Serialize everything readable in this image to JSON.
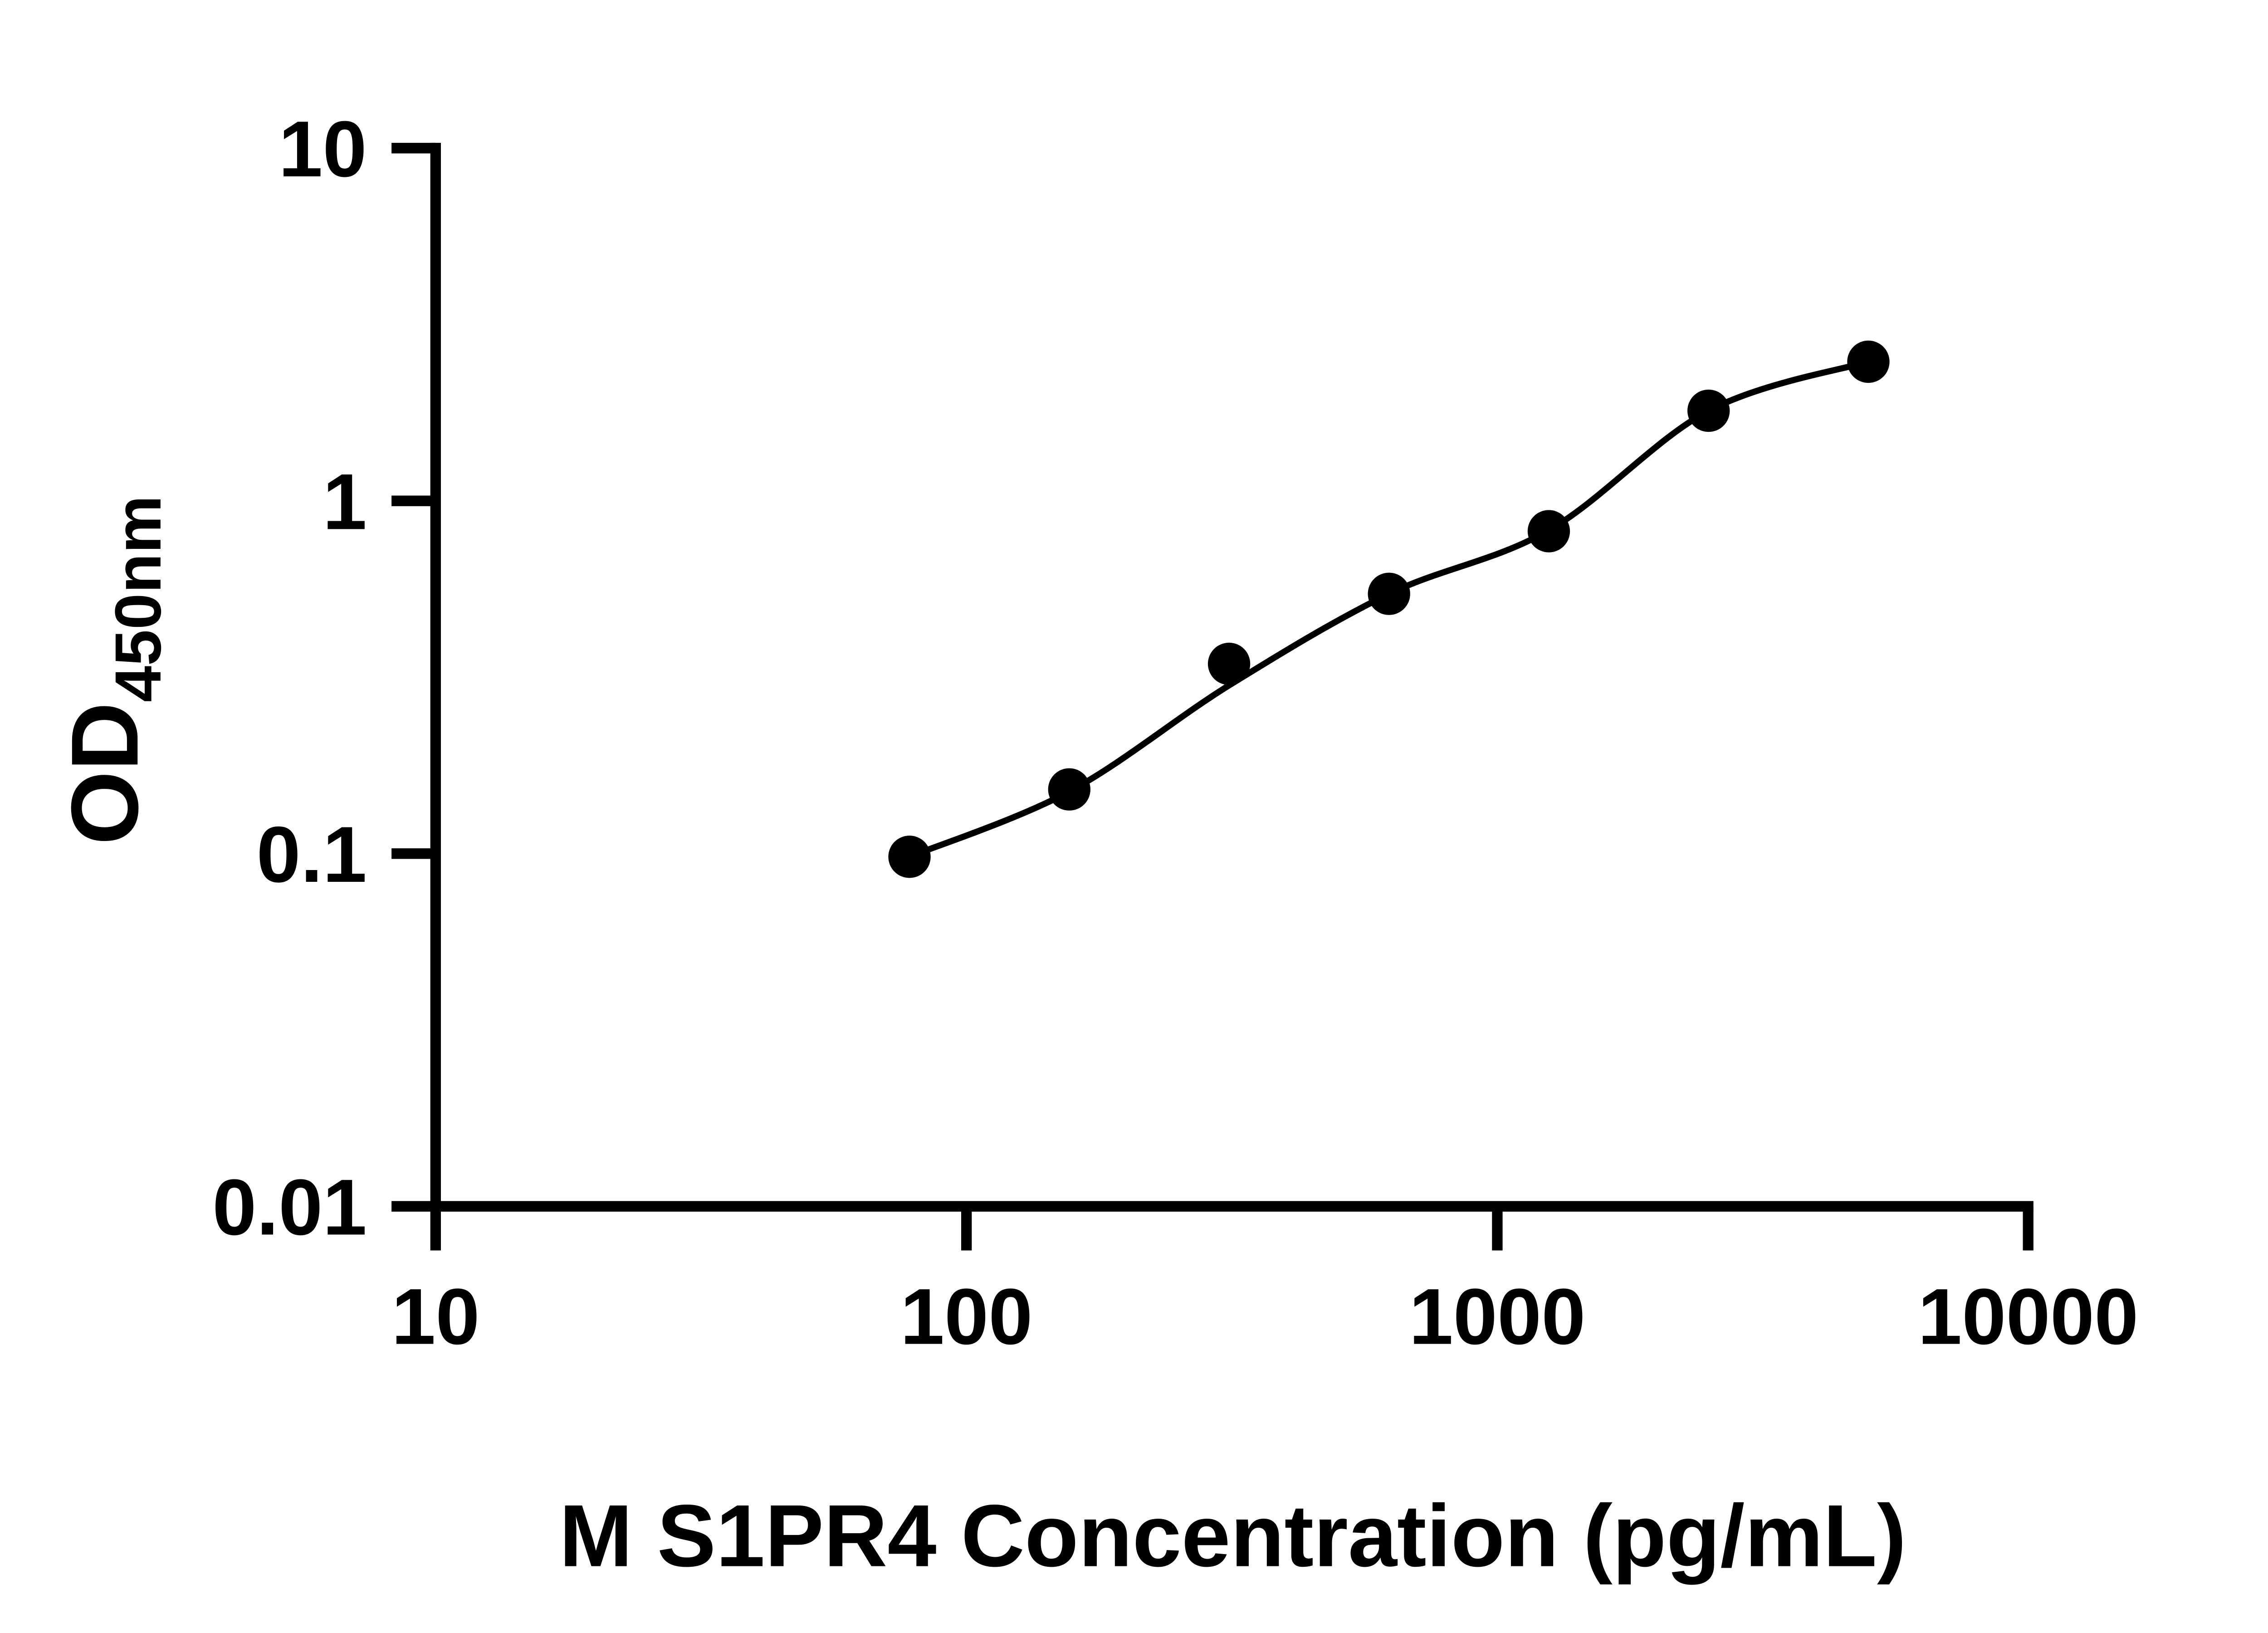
{
  "figure": {
    "background_color": "#ffffff",
    "foreground_color": "#000000"
  },
  "chart_data": {
    "type": "scatter",
    "title": "",
    "xlabel": "M S1PR4 Concentration (pg/mL)",
    "ylabel_main": "OD",
    "ylabel_sub": "450nm",
    "x_scale": "log10",
    "y_scale": "log10",
    "xlim": [
      10,
      10000
    ],
    "ylim": [
      0.01,
      10
    ],
    "x_ticks": [
      10,
      100,
      1000,
      10000
    ],
    "x_tick_labels": [
      "10",
      "100",
      "1000",
      "10000"
    ],
    "y_ticks": [
      0.01,
      0.1,
      1,
      10
    ],
    "y_tick_labels": [
      "0.01",
      "0.1",
      "1",
      "10"
    ],
    "grid": false,
    "legend": null,
    "tick_direction": "outward",
    "axis_color": "#000000",
    "marker_color": "#000000",
    "line_color": "#000000",
    "series": [
      {
        "points": [
          {
            "x": 78.125,
            "y": 0.098
          },
          {
            "x": 156.25,
            "y": 0.152
          },
          {
            "x": 312.5,
            "y": 0.345
          },
          {
            "x": 625,
            "y": 0.545
          },
          {
            "x": 1250,
            "y": 0.82
          },
          {
            "x": 2500,
            "y": 1.8
          },
          {
            "x": 5000,
            "y": 2.48
          }
        ],
        "fit_curve_od": [
          0.098,
          0.15,
          0.3,
          0.545,
          0.825,
          1.8,
          2.48
        ]
      }
    ]
  }
}
